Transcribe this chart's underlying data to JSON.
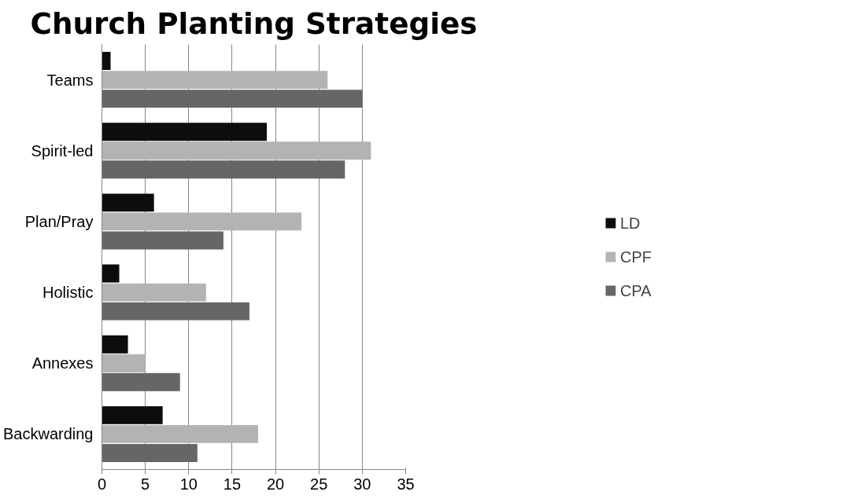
{
  "chart_data": {
    "type": "bar",
    "orientation": "horizontal",
    "title": "Church Planting Strategies",
    "categories": [
      "Teams",
      "Spirit-led",
      "Plan/Pray",
      "Holistic",
      "Annexes",
      "Backwarding"
    ],
    "series": [
      {
        "name": "LD",
        "color": "#0d0d0d",
        "values": [
          1,
          19,
          6,
          2,
          3,
          7
        ]
      },
      {
        "name": "CPF",
        "color": "#b3b3b3",
        "values": [
          26,
          31,
          23,
          12,
          5,
          18
        ]
      },
      {
        "name": "CPA",
        "color": "#666666",
        "values": [
          30,
          28,
          14,
          17,
          9,
          11
        ]
      }
    ],
    "xlim": [
      0,
      35
    ],
    "xticks": [
      0,
      5,
      10,
      15,
      20,
      25,
      30,
      35
    ],
    "grid": "x",
    "legend": "right"
  }
}
